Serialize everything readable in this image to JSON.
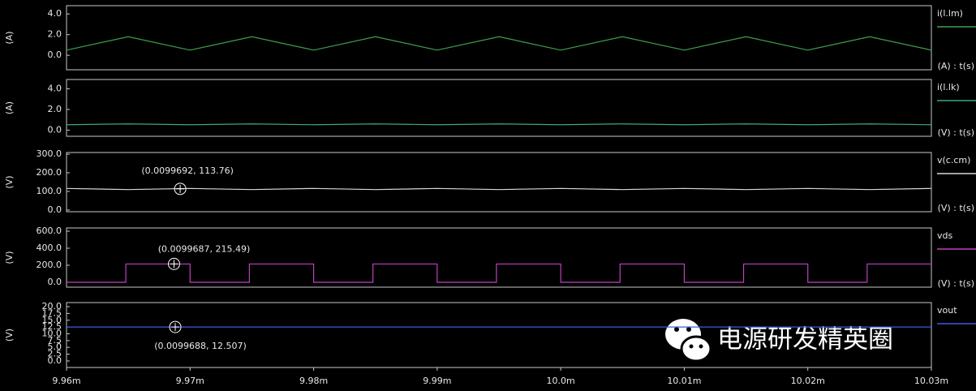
{
  "chart_data": [
    {
      "type": "line",
      "ylabel": "(A)",
      "axis_note": "(A) : t(s)",
      "x": [
        0.00996,
        0.009965,
        0.00997,
        0.009975,
        0.00998,
        0.009985,
        0.00999,
        0.009995,
        0.01,
        0.010005,
        0.01001,
        0.010015,
        0.01002,
        0.010025,
        0.01003
      ],
      "xlim": [
        0.00996,
        0.01003
      ],
      "ylim": [
        -1.4,
        4.8
      ],
      "yticks": [
        {
          "value": 0,
          "label": "0.0"
        },
        {
          "value": 2,
          "label": "2.0"
        },
        {
          "value": 4,
          "label": "4.0"
        }
      ],
      "series": [
        {
          "name": "i(l.lm)",
          "color": "#3f9f4f",
          "values": [
            0.5,
            1.8,
            0.5,
            1.8,
            0.5,
            1.8,
            0.5,
            1.8,
            0.5,
            1.8,
            0.5,
            1.8,
            0.5,
            1.8,
            0.5
          ]
        }
      ]
    },
    {
      "type": "line",
      "ylabel": "(A)",
      "axis_note": "(V) : t(s)",
      "x": [
        0.00996,
        0.009965,
        0.00997,
        0.009975,
        0.00998,
        0.009985,
        0.00999,
        0.009995,
        0.01,
        0.010005,
        0.01001,
        0.010015,
        0.01002,
        0.010025,
        0.01003
      ],
      "xlim": [
        0.00996,
        0.01003
      ],
      "ylim": [
        -0.6,
        4.9
      ],
      "yticks": [
        {
          "value": 0,
          "label": "0.0"
        },
        {
          "value": 2,
          "label": "2.0"
        },
        {
          "value": 4,
          "label": "4.0"
        }
      ],
      "series": [
        {
          "name": "i(l.lk)",
          "color": "#3fa58a",
          "values": [
            0.52,
            0.6,
            0.52,
            0.6,
            0.52,
            0.6,
            0.52,
            0.6,
            0.52,
            0.6,
            0.52,
            0.6,
            0.52,
            0.6,
            0.52
          ]
        }
      ]
    },
    {
      "type": "line",
      "ylabel": "(V)",
      "axis_note": "(V) : t(s)",
      "x": [
        0.00996,
        0.009965,
        0.00997,
        0.009975,
        0.00998,
        0.009985,
        0.00999,
        0.009995,
        0.01,
        0.010005,
        0.01001,
        0.010015,
        0.01002,
        0.010025,
        0.01003
      ],
      "xlim": [
        0.00996,
        0.01003
      ],
      "ylim": [
        -9,
        309
      ],
      "yticks": [
        {
          "value": 0,
          "label": "0.0"
        },
        {
          "value": 100,
          "label": "100.0"
        },
        {
          "value": 200,
          "label": "200.0"
        },
        {
          "value": 300,
          "label": "300.0"
        }
      ],
      "series": [
        {
          "name": "v(c.cm)",
          "color": "#d8d8d8",
          "values": [
            116,
            110,
            116,
            110,
            116,
            110,
            116,
            110,
            116,
            110,
            116,
            110,
            116,
            110,
            116
          ]
        }
      ],
      "annotations": [
        {
          "text": "(0.0099692, 113.76)",
          "x": 0.0099692,
          "y": 113.76
        }
      ]
    },
    {
      "type": "line",
      "ylabel": "(V)",
      "axis_note": "(V) : t(s)",
      "x": [
        0.00996,
        0.0099648,
        0.0099648,
        0.00997,
        0.00997,
        0.0099748,
        0.0099748,
        0.00998,
        0.00998,
        0.0099848,
        0.0099848,
        0.00999,
        0.00999,
        0.0099948,
        0.0099948,
        0.01,
        0.01,
        0.0100048,
        0.0100048,
        0.01001,
        0.01001,
        0.0100148,
        0.0100148,
        0.01002,
        0.01002,
        0.0100248,
        0.0100248,
        0.01003
      ],
      "xlim": [
        0.00996,
        0.01003
      ],
      "ylim": [
        -57,
        638
      ],
      "yticks": [
        {
          "value": 0,
          "label": "0.0"
        },
        {
          "value": 200,
          "label": "200.0"
        },
        {
          "value": 400,
          "label": "400.0"
        },
        {
          "value": 600,
          "label": "600.0"
        }
      ],
      "series": [
        {
          "name": "vds",
          "color": "#c040c0",
          "values": [
            0,
            0,
            215,
            215,
            0,
            0,
            215,
            215,
            0,
            0,
            215,
            215,
            0,
            0,
            215,
            215,
            0,
            0,
            215,
            215,
            0,
            0,
            215,
            215,
            0,
            0,
            215,
            215
          ]
        }
      ],
      "annotations": [
        {
          "text": "(0.0099687, 215.49)",
          "x": 0.0099687,
          "y": 215.49
        }
      ]
    },
    {
      "type": "line",
      "ylabel": "(V)",
      "x": [
        0.00996,
        0.01003
      ],
      "xlim": [
        0.00996,
        0.01003
      ],
      "ylim": [
        -2.4,
        21.5
      ],
      "yticks": [
        {
          "value": 0,
          "label": "0.0"
        },
        {
          "value": 2.5,
          "label": "2.5"
        },
        {
          "value": 5,
          "label": "5.0"
        },
        {
          "value": 7.5,
          "label": "7.5"
        },
        {
          "value": 10,
          "label": "10.0"
        },
        {
          "value": 12.5,
          "label": "12.5"
        },
        {
          "value": 15,
          "label": "15.0"
        },
        {
          "value": 17.5,
          "label": "17.5"
        },
        {
          "value": 20,
          "label": "20.0"
        }
      ],
      "xticks": [
        {
          "value": 0.00996,
          "label": "9.96m"
        },
        {
          "value": 0.00997,
          "label": "9.97m"
        },
        {
          "value": 0.00998,
          "label": "9.98m"
        },
        {
          "value": 0.00999,
          "label": "9.99m"
        },
        {
          "value": 0.01,
          "label": "10.0m"
        },
        {
          "value": 0.01001,
          "label": "10.01m"
        },
        {
          "value": 0.01002,
          "label": "10.02m"
        },
        {
          "value": 0.01003,
          "label": "10.03m"
        }
      ],
      "series": [
        {
          "name": "vout",
          "color": "#3a5ae8",
          "values": [
            12.5,
            12.5
          ]
        }
      ],
      "annotations": [
        {
          "text": "(0.0099688, 12.507)",
          "x": 0.0099688,
          "y": 12.507
        }
      ]
    }
  ],
  "watermark": "电源研发精英圈"
}
